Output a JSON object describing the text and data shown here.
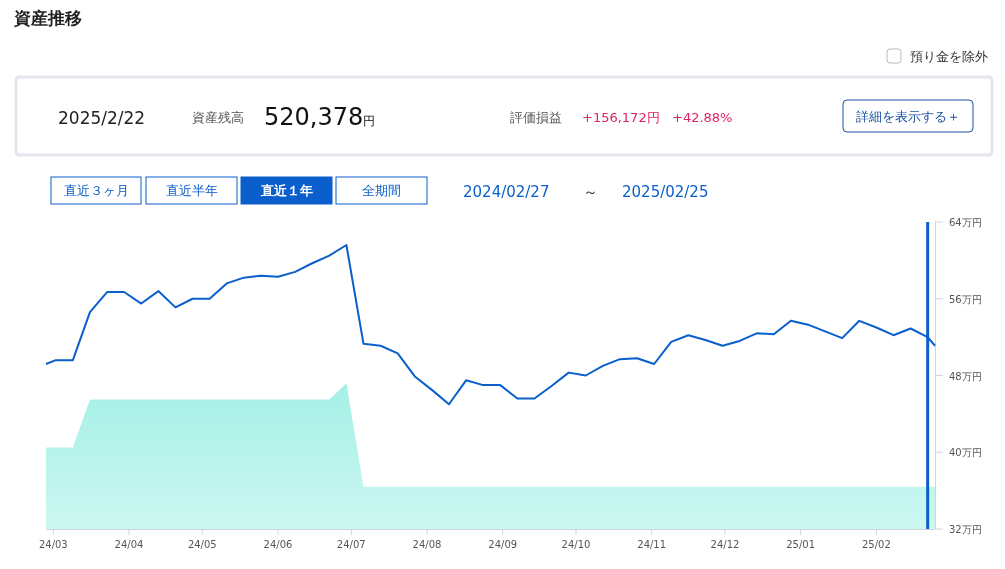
{
  "chart_data": {
    "type": "line",
    "title": "資産推移",
    "annotations": [
      "預り金を除外",
      "2025/2/22",
      "資産残高",
      "520,378円",
      "評価損益",
      "+156,172円",
      "+42.88%",
      "詳細を表示する＋",
      "直近３ヶ月",
      "直近半年",
      "直近１年",
      "全期間",
      "2024/02/27",
      "～",
      "2025/02/25"
    ],
    "x": [
      "2024-02-27",
      "2024-03-02",
      "2024-03-09",
      "2024-03-16",
      "2024-03-23",
      "2024-03-30",
      "2024-04-06",
      "2024-04-13",
      "2024-04-20",
      "2024-04-27",
      "2024-05-04",
      "2024-05-11",
      "2024-05-18",
      "2024-05-25",
      "2024-06-01",
      "2024-06-08",
      "2024-06-15",
      "2024-06-22",
      "2024-06-29",
      "2024-07-06",
      "2024-07-13",
      "2024-07-20",
      "2024-07-27",
      "2024-08-03",
      "2024-08-10",
      "2024-08-17",
      "2024-08-24",
      "2024-08-31",
      "2024-09-07",
      "2024-09-14",
      "2024-09-21",
      "2024-09-28",
      "2024-10-05",
      "2024-10-12",
      "2024-10-19",
      "2024-10-26",
      "2024-11-02",
      "2024-11-09",
      "2024-11-16",
      "2024-11-23",
      "2024-11-30",
      "2024-12-07",
      "2024-12-14",
      "2024-12-21",
      "2024-12-28",
      "2025-01-04",
      "2025-01-11",
      "2025-01-18",
      "2025-01-25",
      "2025-02-01",
      "2025-02-08",
      "2025-02-15",
      "2025-02-22",
      "2025-02-25"
    ],
    "series": [
      {
        "type": "area",
        "color": "#a4f0e6",
        "values": [
          40.5,
          40.5,
          40.5,
          45.5,
          45.5,
          45.5,
          45.5,
          45.5,
          45.5,
          45.5,
          45.5,
          45.5,
          45.5,
          45.5,
          45.5,
          45.5,
          45.5,
          45.5,
          47.2,
          36.4,
          36.4,
          36.4,
          36.4,
          36.4,
          36.4,
          36.4,
          36.4,
          36.4,
          36.4,
          36.4,
          36.4,
          36.4,
          36.4,
          36.4,
          36.4,
          36.4,
          36.4,
          36.4,
          36.4,
          36.4,
          36.4,
          36.4,
          36.4,
          36.4,
          36.4,
          36.4,
          36.4,
          36.4,
          36.4,
          36.4,
          36.4,
          36.4,
          36.4,
          36.4
        ]
      },
      {
        "color": "#0a5fcc",
        "values": [
          49.2,
          49.6,
          49.6,
          54.6,
          56.7,
          56.7,
          55.5,
          56.8,
          55.1,
          56.0,
          56.0,
          57.6,
          58.2,
          58.4,
          58.3,
          58.8,
          59.7,
          60.5,
          61.6,
          51.3,
          51.1,
          50.3,
          47.9,
          46.5,
          45.0,
          47.5,
          47.0,
          47.0,
          45.6,
          45.6,
          46.9,
          48.3,
          48.0,
          49.0,
          49.7,
          49.8,
          49.2,
          51.5,
          52.2,
          51.7,
          51.1,
          51.6,
          52.4,
          52.3,
          53.7,
          53.3,
          52.6,
          51.9,
          53.7,
          53.0,
          52.2,
          52.9,
          52.0,
          51.1
        ]
      }
    ],
    "xlim": [
      "2024-02-27",
      "2025-02-25"
    ],
    "xticks": [
      {
        "value": "2024-03-01",
        "label": "24/03"
      },
      {
        "value": "2024-04-01",
        "label": "24/04"
      },
      {
        "value": "2024-05-01",
        "label": "24/05"
      },
      {
        "value": "2024-06-01",
        "label": "24/06"
      },
      {
        "value": "2024-07-01",
        "label": "24/07"
      },
      {
        "value": "2024-08-01",
        "label": "24/08"
      },
      {
        "value": "2024-09-01",
        "label": "24/09"
      },
      {
        "value": "2024-10-01",
        "label": "24/10"
      },
      {
        "value": "2024-11-01",
        "label": "24/11"
      },
      {
        "value": "2024-12-01",
        "label": "24/12"
      },
      {
        "value": "2025-01-01",
        "label": "25/01"
      },
      {
        "value": "2025-02-01",
        "label": "25/02"
      }
    ],
    "ylim": [
      32,
      64
    ],
    "yticks": [
      {
        "value": 32,
        "label": "32万円"
      },
      {
        "value": 40,
        "label": "40万円"
      },
      {
        "value": 48,
        "label": "48万円"
      },
      {
        "value": 56,
        "label": "56万円"
      },
      {
        "value": 64,
        "label": "64万円"
      }
    ],
    "ref_lines": [
      {
        "axis": "x",
        "value": "2025-02-22",
        "color": "#0a5fcc"
      }
    ],
    "grid": false,
    "marker": "none",
    "line_style": "solid"
  }
}
